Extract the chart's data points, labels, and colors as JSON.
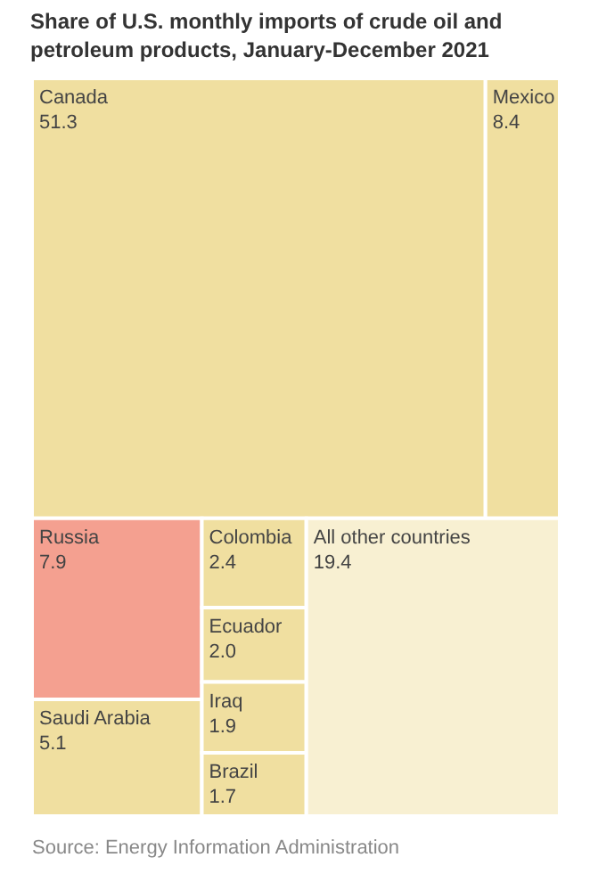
{
  "chart_data": {
    "type": "other",
    "title": "Share of U.S. monthly imports of crude oil and petroleum products, January-December 2021",
    "categories": [
      "Canada",
      "Mexico",
      "Russia",
      "Saudi Arabia",
      "Colombia",
      "Ecuador",
      "Iraq",
      "Brazil",
      "All other countries"
    ],
    "values": [
      51.3,
      8.4,
      7.9,
      5.1,
      2.4,
      2.0,
      1.9,
      1.7,
      19.4
    ],
    "value_labels": [
      "51.3",
      "8.4",
      "7.9",
      "5.1",
      "2.4",
      "2.0",
      "1.9",
      "1.7",
      "19.4"
    ],
    "colors": [
      "#f0dfa0",
      "#f0dfa0",
      "#f4a090",
      "#f0dfa0",
      "#f0dfa0",
      "#f0dfa0",
      "#f0dfa0",
      "#f0dfa0",
      "#f8f0d2"
    ],
    "annotations": [
      "Source: Energy Information Administration"
    ]
  }
}
